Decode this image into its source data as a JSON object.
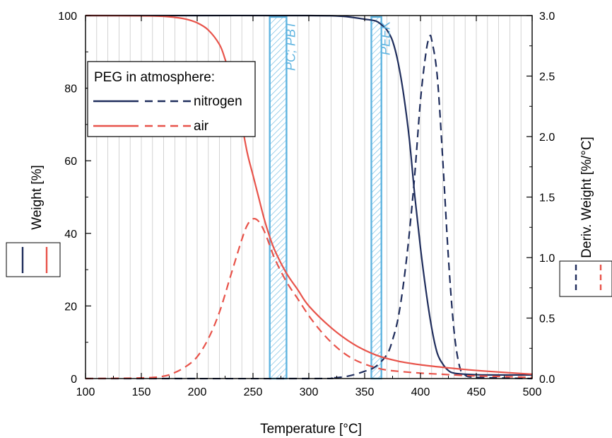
{
  "chart_data": {
    "type": "line",
    "xlabel": "Temperature [°C]",
    "ylabel_left": "Weight [%]",
    "ylabel_right": "Deriv. Weight [%/°C]",
    "xlim": [
      100,
      500
    ],
    "ylim_left": [
      0,
      100
    ],
    "ylim_right": [
      0,
      3.0
    ],
    "x_ticks": [
      "100",
      "150",
      "200",
      "250",
      "300",
      "350",
      "400",
      "450",
      "500"
    ],
    "y_ticks_left": [
      "0",
      "20",
      "40",
      "60",
      "80",
      "100"
    ],
    "y_ticks_right": [
      "0.0",
      "0.5",
      "1.0",
      "1.5",
      "2.0",
      "2.5",
      "3.0"
    ],
    "grid": true,
    "colors": {
      "nitrogen": "#1f2d5c",
      "air": "#e8534a",
      "band": "#5fb4e0"
    },
    "legend": {
      "title": "PEG in atmosphere:",
      "entries": [
        "nitrogen",
        "air"
      ],
      "placement": "upper-left"
    },
    "bands": [
      {
        "label": "PC; PBT",
        "x_range": [
          265,
          280
        ]
      },
      {
        "label": "PEEK",
        "x_range": [
          356,
          365
        ]
      }
    ],
    "series": [
      {
        "name": "nitrogen",
        "kind": "weight",
        "axis": "left",
        "style": "solid",
        "x": [
          100,
          200,
          300,
          330,
          350,
          360,
          365,
          370,
          375,
          380,
          385,
          390,
          395,
          400,
          405,
          410,
          415,
          420,
          425,
          430,
          440,
          460,
          500
        ],
        "y": [
          100,
          100,
          100,
          99.8,
          99,
          98.5,
          97.5,
          96,
          93,
          87,
          78,
          66,
          50,
          36,
          24,
          14,
          7,
          4,
          2.2,
          1.5,
          1.2,
          1.0,
          1.0
        ]
      },
      {
        "name": "nitrogen",
        "kind": "derivative",
        "axis": "right",
        "style": "dashed",
        "x": [
          100,
          300,
          320,
          335,
          350,
          360,
          370,
          375,
          380,
          385,
          390,
          395,
          400,
          405,
          408,
          410,
          415,
          420,
          425,
          430,
          435,
          440,
          450,
          500
        ],
        "y": [
          0,
          0,
          0.005,
          0.02,
          0.06,
          0.1,
          0.2,
          0.32,
          0.5,
          0.8,
          1.2,
          1.7,
          2.3,
          2.7,
          2.82,
          2.8,
          2.5,
          1.8,
          1.0,
          0.4,
          0.1,
          0.03,
          0.01,
          0
        ]
      },
      {
        "name": "air",
        "kind": "weight",
        "axis": "left",
        "style": "solid",
        "x": [
          100,
          160,
          180,
          190,
          200,
          210,
          220,
          225,
          230,
          235,
          240,
          245,
          250,
          255,
          260,
          265,
          270,
          280,
          290,
          300,
          320,
          340,
          360,
          380,
          400,
          420,
          440,
          460,
          500
        ],
        "y": [
          100,
          99.9,
          99.5,
          99,
          98,
          96,
          92,
          88,
          83,
          77,
          70,
          62,
          56,
          50,
          44,
          39,
          35,
          29,
          24.5,
          20,
          14,
          9.5,
          6.5,
          4.8,
          3.8,
          3.1,
          2.5,
          2.0,
          1.2
        ]
      },
      {
        "name": "air",
        "kind": "derivative",
        "axis": "right",
        "style": "dashed",
        "x": [
          100,
          150,
          170,
          180,
          190,
          200,
          210,
          220,
          230,
          240,
          245,
          250,
          255,
          260,
          265,
          270,
          280,
          290,
          300,
          310,
          320,
          330,
          340,
          350,
          360,
          370,
          380,
          400,
          420,
          440,
          460,
          500
        ],
        "y": [
          0,
          0.005,
          0.02,
          0.05,
          0.1,
          0.18,
          0.33,
          0.55,
          0.85,
          1.15,
          1.27,
          1.32,
          1.3,
          1.22,
          1.1,
          0.98,
          0.8,
          0.66,
          0.52,
          0.4,
          0.3,
          0.22,
          0.16,
          0.12,
          0.09,
          0.07,
          0.06,
          0.045,
          0.035,
          0.025,
          0.02,
          0.01
        ]
      }
    ]
  }
}
